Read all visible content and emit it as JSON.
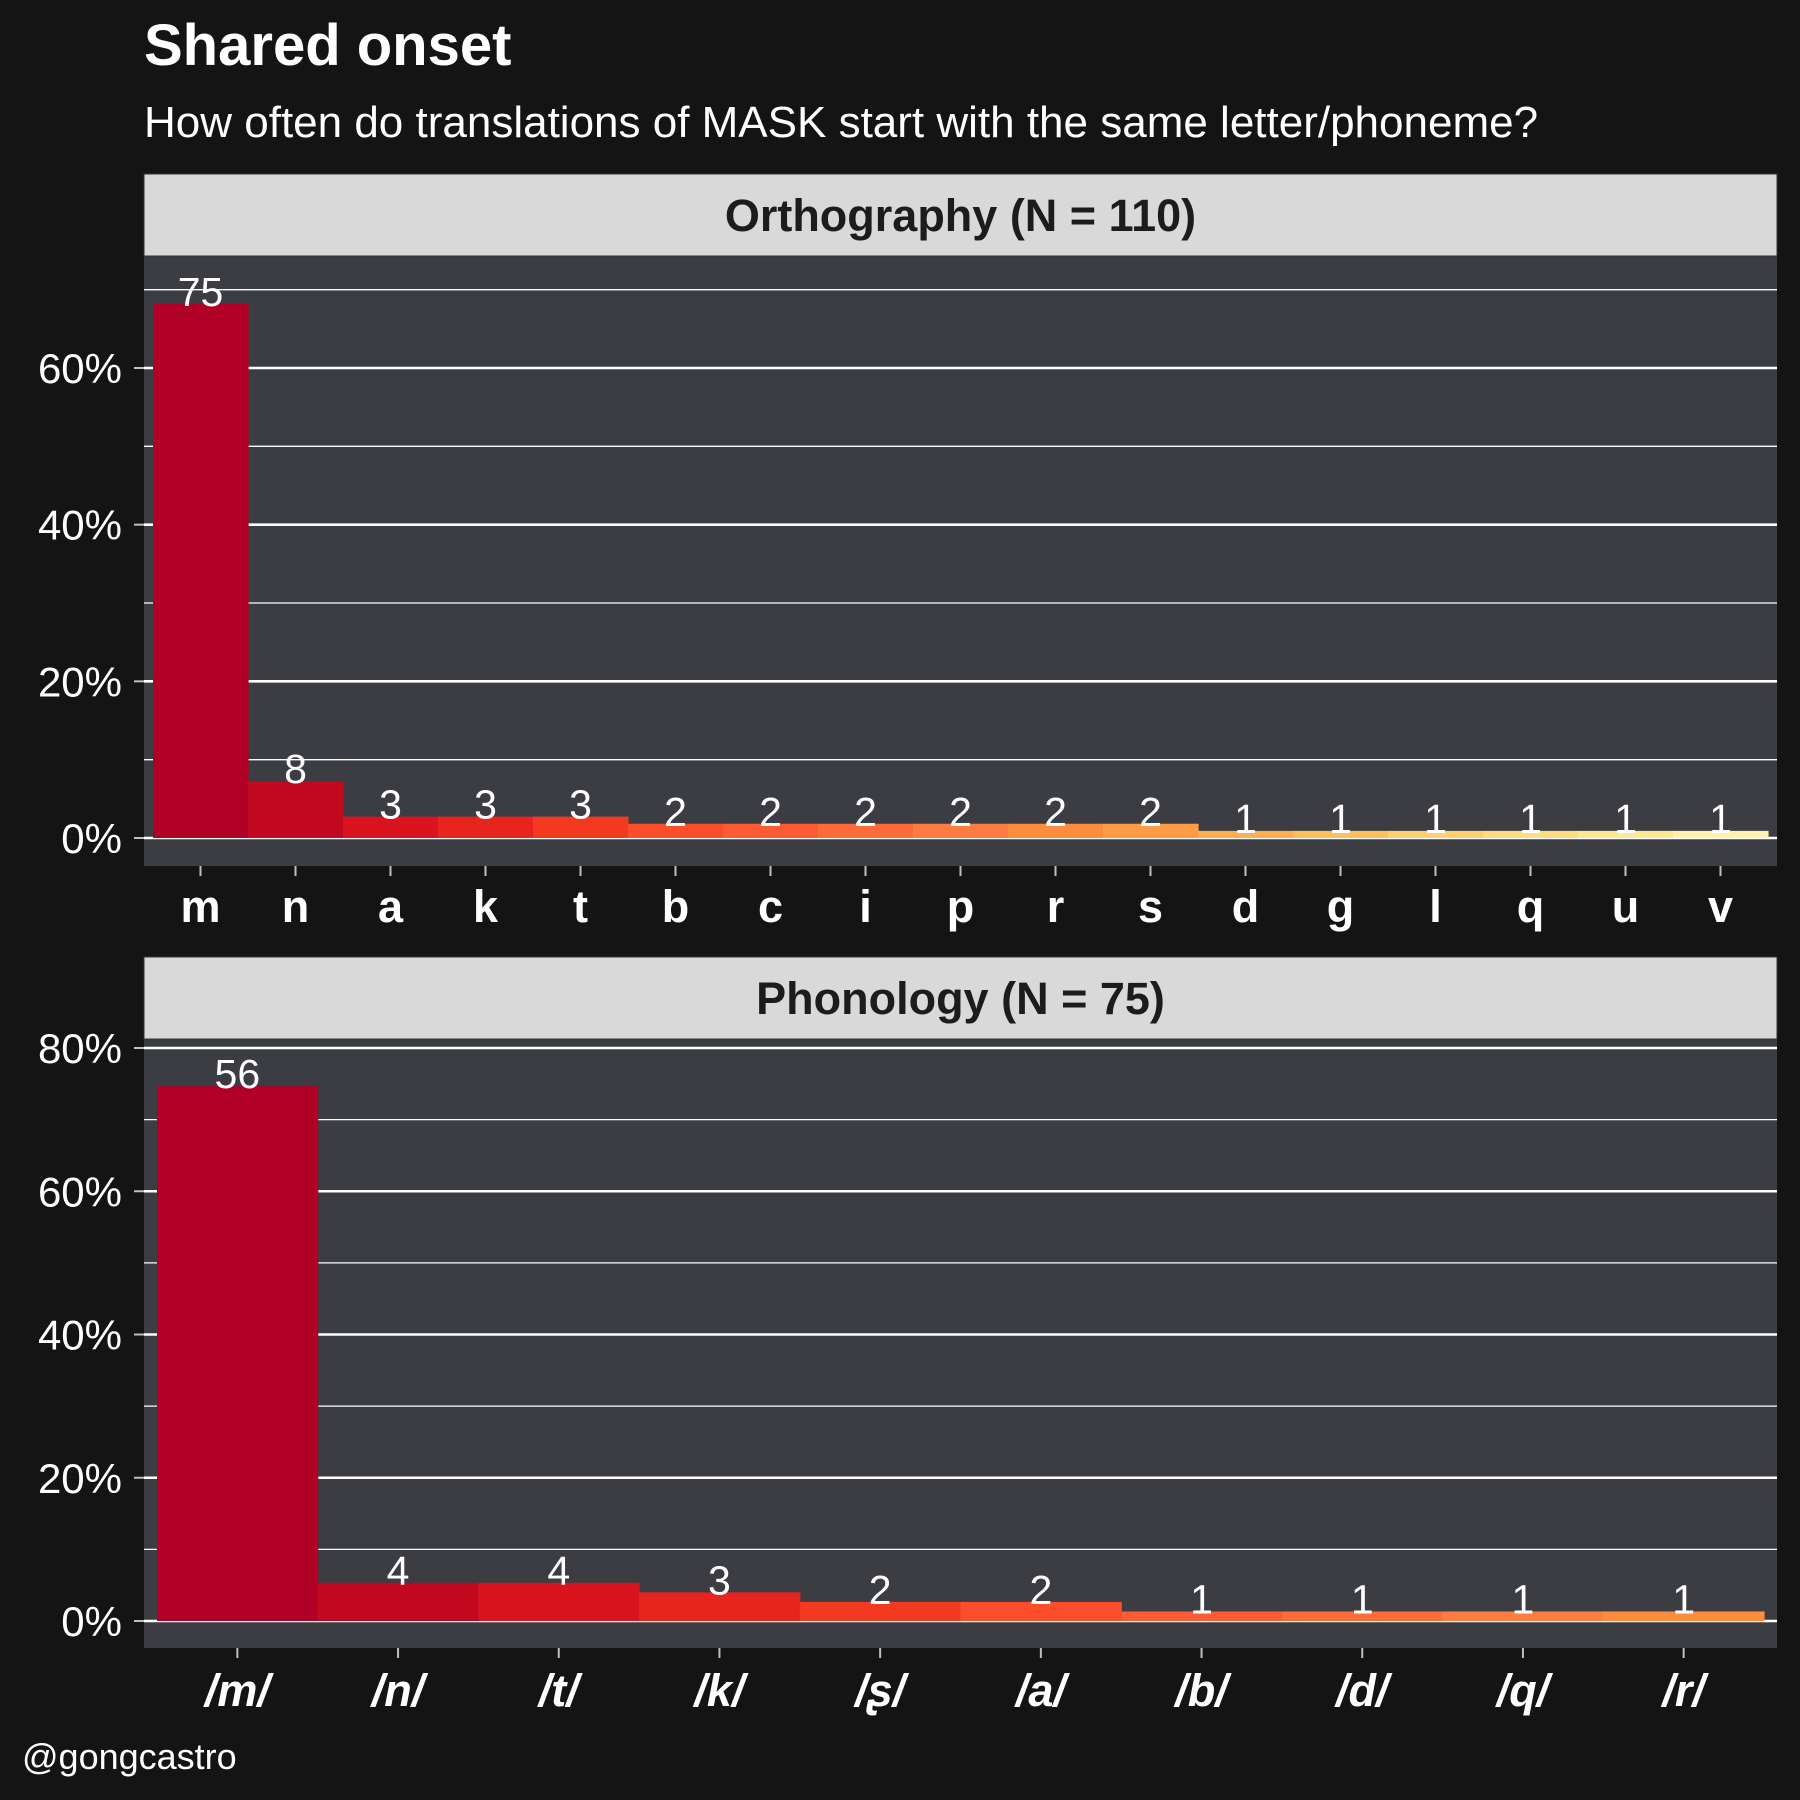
{
  "title": "Shared onset",
  "subtitle": "How often do translations of MASK start with the same letter/phoneme?",
  "caption": "@gongcastro",
  "chart_data": [
    {
      "type": "bar",
      "panel_title": "Orthography (N = 110)",
      "categories": [
        "m",
        "n",
        "a",
        "k",
        "t",
        "b",
        "c",
        "i",
        "p",
        "r",
        "s",
        "d",
        "g",
        "l",
        "q",
        "u",
        "v"
      ],
      "counts": [
        75,
        8,
        3,
        3,
        3,
        2,
        2,
        2,
        2,
        2,
        2,
        1,
        1,
        1,
        1,
        1,
        1
      ],
      "total": 110,
      "y_unit": "percent",
      "ylim": [
        0,
        75
      ],
      "yticks": [
        0,
        20,
        40,
        60
      ],
      "ytick_labels": [
        "0%",
        "20%",
        "40%",
        "60%"
      ],
      "x_label_style": "bold",
      "colors": [
        "#b10026",
        "#c1081f",
        "#d9141f",
        "#e7241e",
        "#f33a20",
        "#fc4e2a",
        "#fd5b31",
        "#fd6b39",
        "#fd7c40",
        "#fd8d3c",
        "#fd9c44",
        "#feae50",
        "#febf5f",
        "#fed06f",
        "#fedd82",
        "#fee896",
        "#fff1ab"
      ]
    },
    {
      "type": "bar",
      "panel_title": "Phonology (N = 75)",
      "categories": [
        "/m/",
        "/n/",
        "/t/",
        "/k/",
        "/ʂ/",
        "/a/",
        "/b/",
        "/d/",
        "/q/",
        "/r/"
      ],
      "counts": [
        56,
        4,
        4,
        3,
        2,
        2,
        1,
        1,
        1,
        1
      ],
      "total": 75,
      "y_unit": "percent",
      "ylim": [
        0,
        80
      ],
      "yticks": [
        0,
        20,
        40,
        60,
        80
      ],
      "ytick_labels": [
        "0%",
        "20%",
        "40%",
        "60%",
        "80%"
      ],
      "x_label_style": "bold-italic",
      "colors": [
        "#b10026",
        "#c1081f",
        "#d9141f",
        "#e7241e",
        "#f33a20",
        "#fc4e2a",
        "#fd5b31",
        "#fd6b39",
        "#fd7c40",
        "#fd8d3c"
      ]
    }
  ],
  "style": {
    "background": "#141414",
    "panel_background": "#3c3d42",
    "strip_background": "#d9d9d9",
    "grid_color": "#ffffff",
    "text_color": "#ffffff"
  }
}
